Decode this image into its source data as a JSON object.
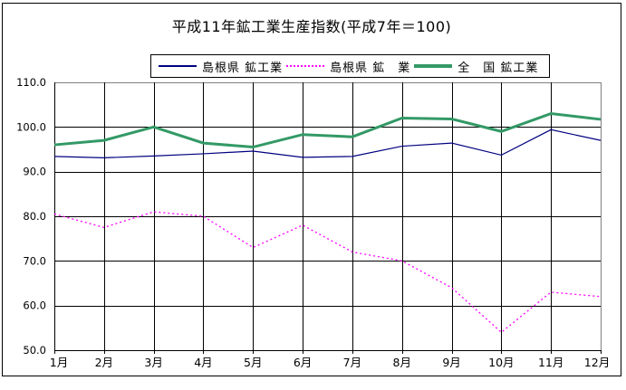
{
  "title": "平成11年鉱工業生産指数(平成7年＝100)",
  "legend": {
    "position": "top",
    "items": [
      {
        "label": "島根県 鉱工業"
      },
      {
        "label": "島根県 鉱　業"
      },
      {
        "label": "全　国 鉱工業"
      }
    ]
  },
  "chart_data": {
    "type": "line",
    "title": "平成11年鉱工業生産指数(平成7年＝100)",
    "categories": [
      "1月",
      "2月",
      "3月",
      "4月",
      "5月",
      "6月",
      "7月",
      "8月",
      "9月",
      "10月",
      "11月",
      "12月"
    ],
    "series": [
      {
        "name": "島根県 鉱工業",
        "color": "#000080",
        "line_style": "solid",
        "line_width": 1.2,
        "values": [
          93.4,
          93.1,
          93.5,
          94.0,
          94.6,
          93.2,
          93.4,
          95.7,
          96.4,
          93.7,
          99.4,
          97.0
        ]
      },
      {
        "name": "島根県 鉱　業",
        "color": "#FF00FF",
        "line_style": "dotted",
        "line_width": 1.3,
        "values": [
          80.5,
          77.5,
          81.0,
          80.0,
          73.0,
          78.0,
          72.0,
          70.0,
          64.0,
          54.0,
          63.0,
          62.0
        ]
      },
      {
        "name": "全　国 鉱工業",
        "color": "#339966",
        "line_style": "solid",
        "line_width": 3,
        "values": [
          96.0,
          97.0,
          100.0,
          96.4,
          95.5,
          98.3,
          97.8,
          102.0,
          101.8,
          99.0,
          103.0,
          101.7
        ]
      }
    ],
    "ylim": [
      50,
      110
    ],
    "ytick_step": 10,
    "ytick_labels": [
      "110.0",
      "100.0",
      "90.0",
      "80.0",
      "70.0",
      "60.0",
      "50.0"
    ],
    "grid": true,
    "legend_position": "top",
    "gridline_color": "#000000",
    "plot_border_color": "#808080",
    "background_color": "#FFFFFF"
  }
}
